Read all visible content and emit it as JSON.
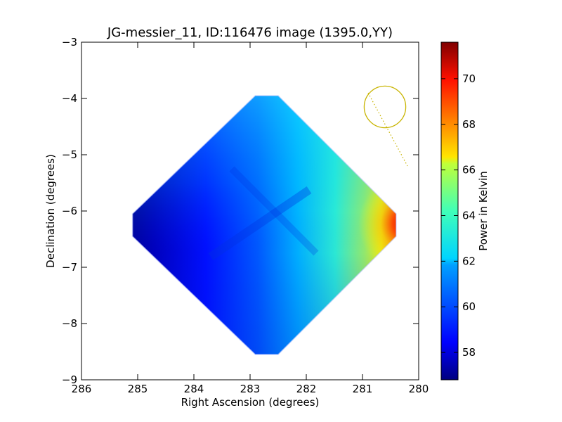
{
  "chart_data": {
    "type": "heatmap",
    "title": "JG-messier_11, ID:116476 image (1395.0,YY)",
    "xlabel": "Right Ascension (degrees)",
    "ylabel": "Declination (degrees)",
    "xlim": [
      286,
      280
    ],
    "ylim": [
      -9,
      -3
    ],
    "x_ticks": [
      "286",
      "285",
      "284",
      "283",
      "282",
      "281",
      "280"
    ],
    "y_ticks": [
      "−3",
      "−4",
      "−5",
      "−6",
      "−7",
      "−8",
      "−9"
    ],
    "x_tick_values": [
      286,
      285,
      284,
      283,
      282,
      281,
      280
    ],
    "y_tick_values": [
      -3,
      -4,
      -5,
      -6,
      -7,
      -8,
      -9
    ],
    "colorbar": {
      "label": "Power in Kelvin",
      "colormap": "jet",
      "range": [
        56.8,
        71.6
      ],
      "ticks": [
        "58",
        "60",
        "62",
        "64",
        "66",
        "68",
        "70"
      ],
      "tick_values": [
        58,
        60,
        62,
        64,
        66,
        68,
        70
      ]
    },
    "footprint": {
      "shape": "diamond",
      "center": [
        282.7,
        -6.25
      ],
      "corners": {
        "top": [
          282.7,
          -3.75
        ],
        "bottom": [
          282.7,
          -8.75
        ],
        "left": [
          285.3,
          -6.25
        ],
        "right": [
          280.2,
          -6.25
        ]
      },
      "value_min": 56.8,
      "value_max": 71.6,
      "min_location": [
        285.2,
        -6.3
      ],
      "max_location": [
        280.3,
        -6.3
      ]
    },
    "beam_marker": {
      "center": [
        280.6,
        -4.15
      ],
      "radius_deg": 0.37,
      "color": "#c8b400",
      "line_start": [
        280.9,
        -3.9
      ],
      "line_end": [
        280.2,
        -5.2
      ]
    },
    "grid": false
  }
}
